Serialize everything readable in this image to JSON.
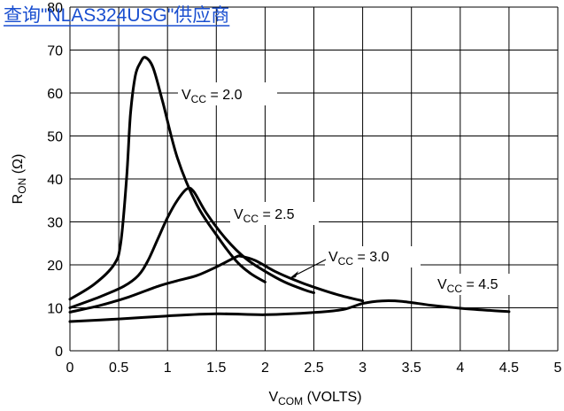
{
  "header": {
    "link_text": "查询\"NLAS324USG\"供应商",
    "link_color": "#1a4fd0"
  },
  "chart_data": {
    "type": "line",
    "title": "",
    "xlabel": {
      "main": "V",
      "sub": "COM",
      "rest": " (VOLTS)"
    },
    "ylabel": {
      "main": "R",
      "sub": "ON",
      "rest": " (Ω)"
    },
    "xlim": [
      0,
      5
    ],
    "ylim": [
      0,
      80
    ],
    "x_ticks": [
      0,
      0.5,
      1,
      1.5,
      2,
      2.5,
      3,
      3.5,
      4,
      4.5,
      5
    ],
    "x_tick_labels": [
      "0",
      "0.5",
      "1",
      "1.5",
      "2",
      "2.5",
      "3",
      "3.5",
      "4",
      "4.5",
      "5"
    ],
    "y_ticks": [
      0,
      10,
      20,
      30,
      40,
      50,
      60,
      70,
      80
    ],
    "y_tick_labels": [
      "0",
      "10",
      "20",
      "30",
      "40",
      "50",
      "60",
      "70",
      "80"
    ],
    "grid": true,
    "series": [
      {
        "label": {
          "main": "V",
          "sub": "CC",
          "rest": " = 2.0"
        },
        "x": [
          0,
          0.25,
          0.45,
          0.52,
          0.58,
          0.62,
          0.67,
          0.72,
          0.77,
          0.85,
          0.95,
          1.1,
          1.3,
          1.5,
          1.7,
          1.85,
          2.0
        ],
        "y": [
          12,
          15.5,
          20,
          25,
          40,
          55,
          64,
          67,
          68.3,
          66,
          58,
          45,
          34,
          27,
          21,
          18,
          16
        ]
      },
      {
        "label": {
          "main": "V",
          "sub": "CC",
          "rest": " = 2.5"
        },
        "x": [
          0,
          0.3,
          0.55,
          0.7,
          0.8,
          0.9,
          1.0,
          1.1,
          1.2,
          1.27,
          1.4,
          1.6,
          1.8,
          2.0,
          2.2,
          2.4,
          2.5
        ],
        "y": [
          10,
          12.5,
          15,
          17.5,
          21,
          26,
          31,
          35,
          37.7,
          37,
          32,
          26,
          21.5,
          18.5,
          16,
          14.2,
          13.5
        ]
      },
      {
        "label": {
          "main": "V",
          "sub": "CC",
          "rest": " = 3.0"
        },
        "x": [
          0,
          0.3,
          0.6,
          0.9,
          1.1,
          1.3,
          1.5,
          1.7,
          1.75,
          1.9,
          2.1,
          2.3,
          2.5,
          2.75,
          3.0
        ],
        "y": [
          9,
          10.5,
          12.5,
          15,
          16.3,
          17.5,
          19.5,
          21.8,
          22,
          21,
          18.5,
          16.5,
          14.8,
          13,
          11.6
        ]
      },
      {
        "label": {
          "main": "V",
          "sub": "CC",
          "rest": " = 4.5"
        },
        "x": [
          0,
          0.5,
          1.0,
          1.5,
          2.0,
          2.5,
          2.8,
          3.0,
          3.2,
          3.4,
          3.7,
          4.0,
          4.3,
          4.5
        ],
        "y": [
          6.8,
          7.4,
          8.1,
          8.6,
          8.4,
          8.9,
          9.6,
          11.0,
          11.6,
          11.5,
          10.6,
          9.9,
          9.4,
          9.1
        ]
      }
    ]
  }
}
